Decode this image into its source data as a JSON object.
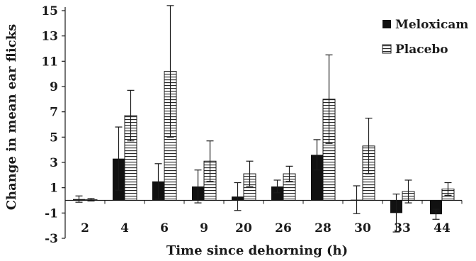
{
  "chart_data": {
    "type": "bar",
    "title": "",
    "xlabel": "Time since dehorning (h)",
    "ylabel": "Change in mean ear flicks",
    "ylim": [
      -3,
      15
    ],
    "yticks": [
      -3,
      -1,
      1,
      3,
      5,
      7,
      9,
      11,
      13,
      15
    ],
    "categories": [
      "2",
      "4",
      "6",
      "9",
      "20",
      "26",
      "28",
      "30",
      "33",
      "44"
    ],
    "series": [
      {
        "name": "Meloxicam",
        "color": "#111111",
        "pattern": "solid",
        "values": [
          0.1,
          3.3,
          1.5,
          1.1,
          0.3,
          1.1,
          3.6,
          0.05,
          -1.0,
          -1.1
        ],
        "errors": [
          0.25,
          2.5,
          1.4,
          1.3,
          1.1,
          0.5,
          1.2,
          1.1,
          1.5,
          0.4
        ]
      },
      {
        "name": "Placebo",
        "color": "#ffffff",
        "pattern": "horizontal-stripes",
        "values": [
          0.05,
          6.7,
          10.2,
          3.1,
          2.1,
          2.1,
          8.0,
          4.3,
          0.7,
          0.9
        ],
        "errors": [
          0.1,
          2.0,
          5.2,
          1.6,
          1.0,
          0.6,
          3.5,
          2.2,
          0.9,
          0.5
        ]
      }
    ],
    "legend_position": "top-right",
    "grid": false
  }
}
